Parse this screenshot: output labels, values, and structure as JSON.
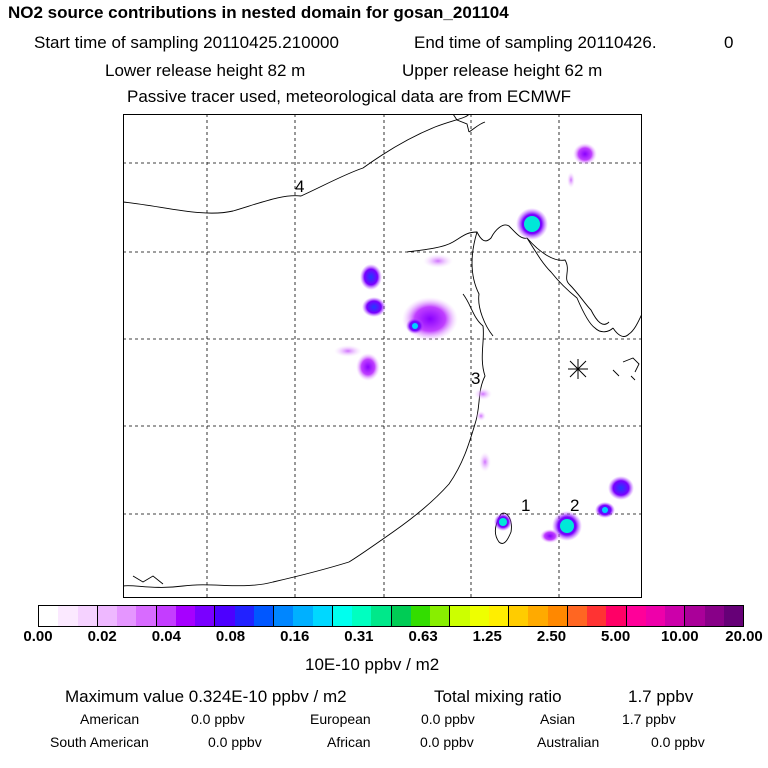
{
  "header": {
    "title": "NO2 source contributions in nested domain for gosan_201104",
    "start_label": "Start time of sampling 20110425.210000",
    "end_label": "End time of sampling 20110426.",
    "end_suffix": "0",
    "lower_release": "Lower release height   82 m",
    "upper_release": "Upper release height   62 m",
    "tracer_note": "Passive tracer used, meteorological data are from ECMWF"
  },
  "map": {
    "region_labels": [
      "4",
      "3",
      "1",
      "2"
    ]
  },
  "colorbar": {
    "colors": [
      "#ffffff",
      "#fbe9ff",
      "#f5d2ff",
      "#eeb8ff",
      "#e596ff",
      "#d86bff",
      "#c43dff",
      "#a600ff",
      "#7a00ff",
      "#4d00ff",
      "#2222ff",
      "#0057ff",
      "#0086ff",
      "#00b0ff",
      "#00d8ff",
      "#00ffee",
      "#00ffc0",
      "#00e88a",
      "#00cc55",
      "#33dd00",
      "#88ee00",
      "#ccff00",
      "#eeff00",
      "#ffee00",
      "#ffcc00",
      "#ffaa00",
      "#ff8800",
      "#ff6622",
      "#ff3333",
      "#ff0066",
      "#ff0099",
      "#ee00aa",
      "#cc00aa",
      "#aa0099",
      "#880088",
      "#660077"
    ],
    "tick_labels": [
      "0.00",
      "0.02",
      "0.04",
      "0.08",
      "0.16",
      "0.31",
      "0.63",
      "1.25",
      "2.50",
      "5.00",
      "10.00",
      "20.00"
    ],
    "unit_label": "10E-10 ppbv / m2"
  },
  "footer": {
    "max_value": "Maximum value  0.324E-10 ppbv / m2",
    "total_mixing": "Total mixing ratio",
    "total_value": "1.7 ppbv",
    "american_label": "American",
    "american_value": "0.0 ppbv",
    "european_label": "European",
    "european_value": "0.0 ppbv",
    "asian_label": "Asian",
    "asian_value": "1.7 ppbv",
    "south_american_label": "South American",
    "south_american_value": "0.0 ppbv",
    "african_label": "African",
    "african_value": "0.0 ppbv",
    "australian_label": "Australian",
    "australian_value": "0.0 ppbv"
  }
}
